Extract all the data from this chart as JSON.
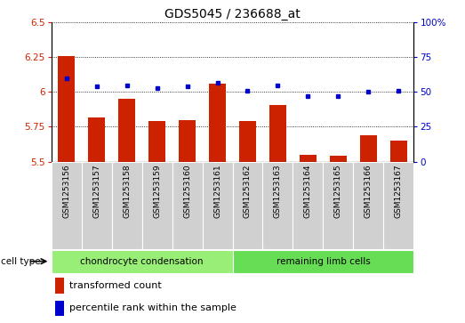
{
  "title": "GDS5045 / 236688_at",
  "samples": [
    "GSM1253156",
    "GSM1253157",
    "GSM1253158",
    "GSM1253159",
    "GSM1253160",
    "GSM1253161",
    "GSM1253162",
    "GSM1253163",
    "GSM1253164",
    "GSM1253165",
    "GSM1253166",
    "GSM1253167"
  ],
  "bar_values": [
    6.26,
    5.82,
    5.95,
    5.79,
    5.8,
    6.06,
    5.79,
    5.91,
    5.55,
    5.54,
    5.69,
    5.65
  ],
  "dot_values": [
    6.1,
    6.04,
    6.05,
    6.03,
    6.04,
    6.07,
    6.01,
    6.05,
    5.97,
    5.97,
    6.0,
    6.01
  ],
  "ylim_left": [
    5.5,
    6.5
  ],
  "ylim_right": [
    0,
    100
  ],
  "yticks_left": [
    5.5,
    5.75,
    6.0,
    6.25,
    6.5
  ],
  "yticks_right": [
    0,
    25,
    50,
    75,
    100
  ],
  "bar_color": "#cc2200",
  "dot_color": "#0000cc",
  "bar_baseline": 5.5,
  "cell_type_groups": [
    {
      "label": "chondrocyte condensation",
      "start": 0,
      "end": 6,
      "color": "#99ee77"
    },
    {
      "label": "remaining limb cells",
      "start": 6,
      "end": 12,
      "color": "#66dd55"
    }
  ],
  "cell_type_label": "cell type",
  "legend_bar_label": "transformed count",
  "legend_dot_label": "percentile rank within the sample",
  "tick_color_left": "#cc2200",
  "tick_color_right": "#0000cc",
  "xticklabel_bg": "#d0d0d0"
}
